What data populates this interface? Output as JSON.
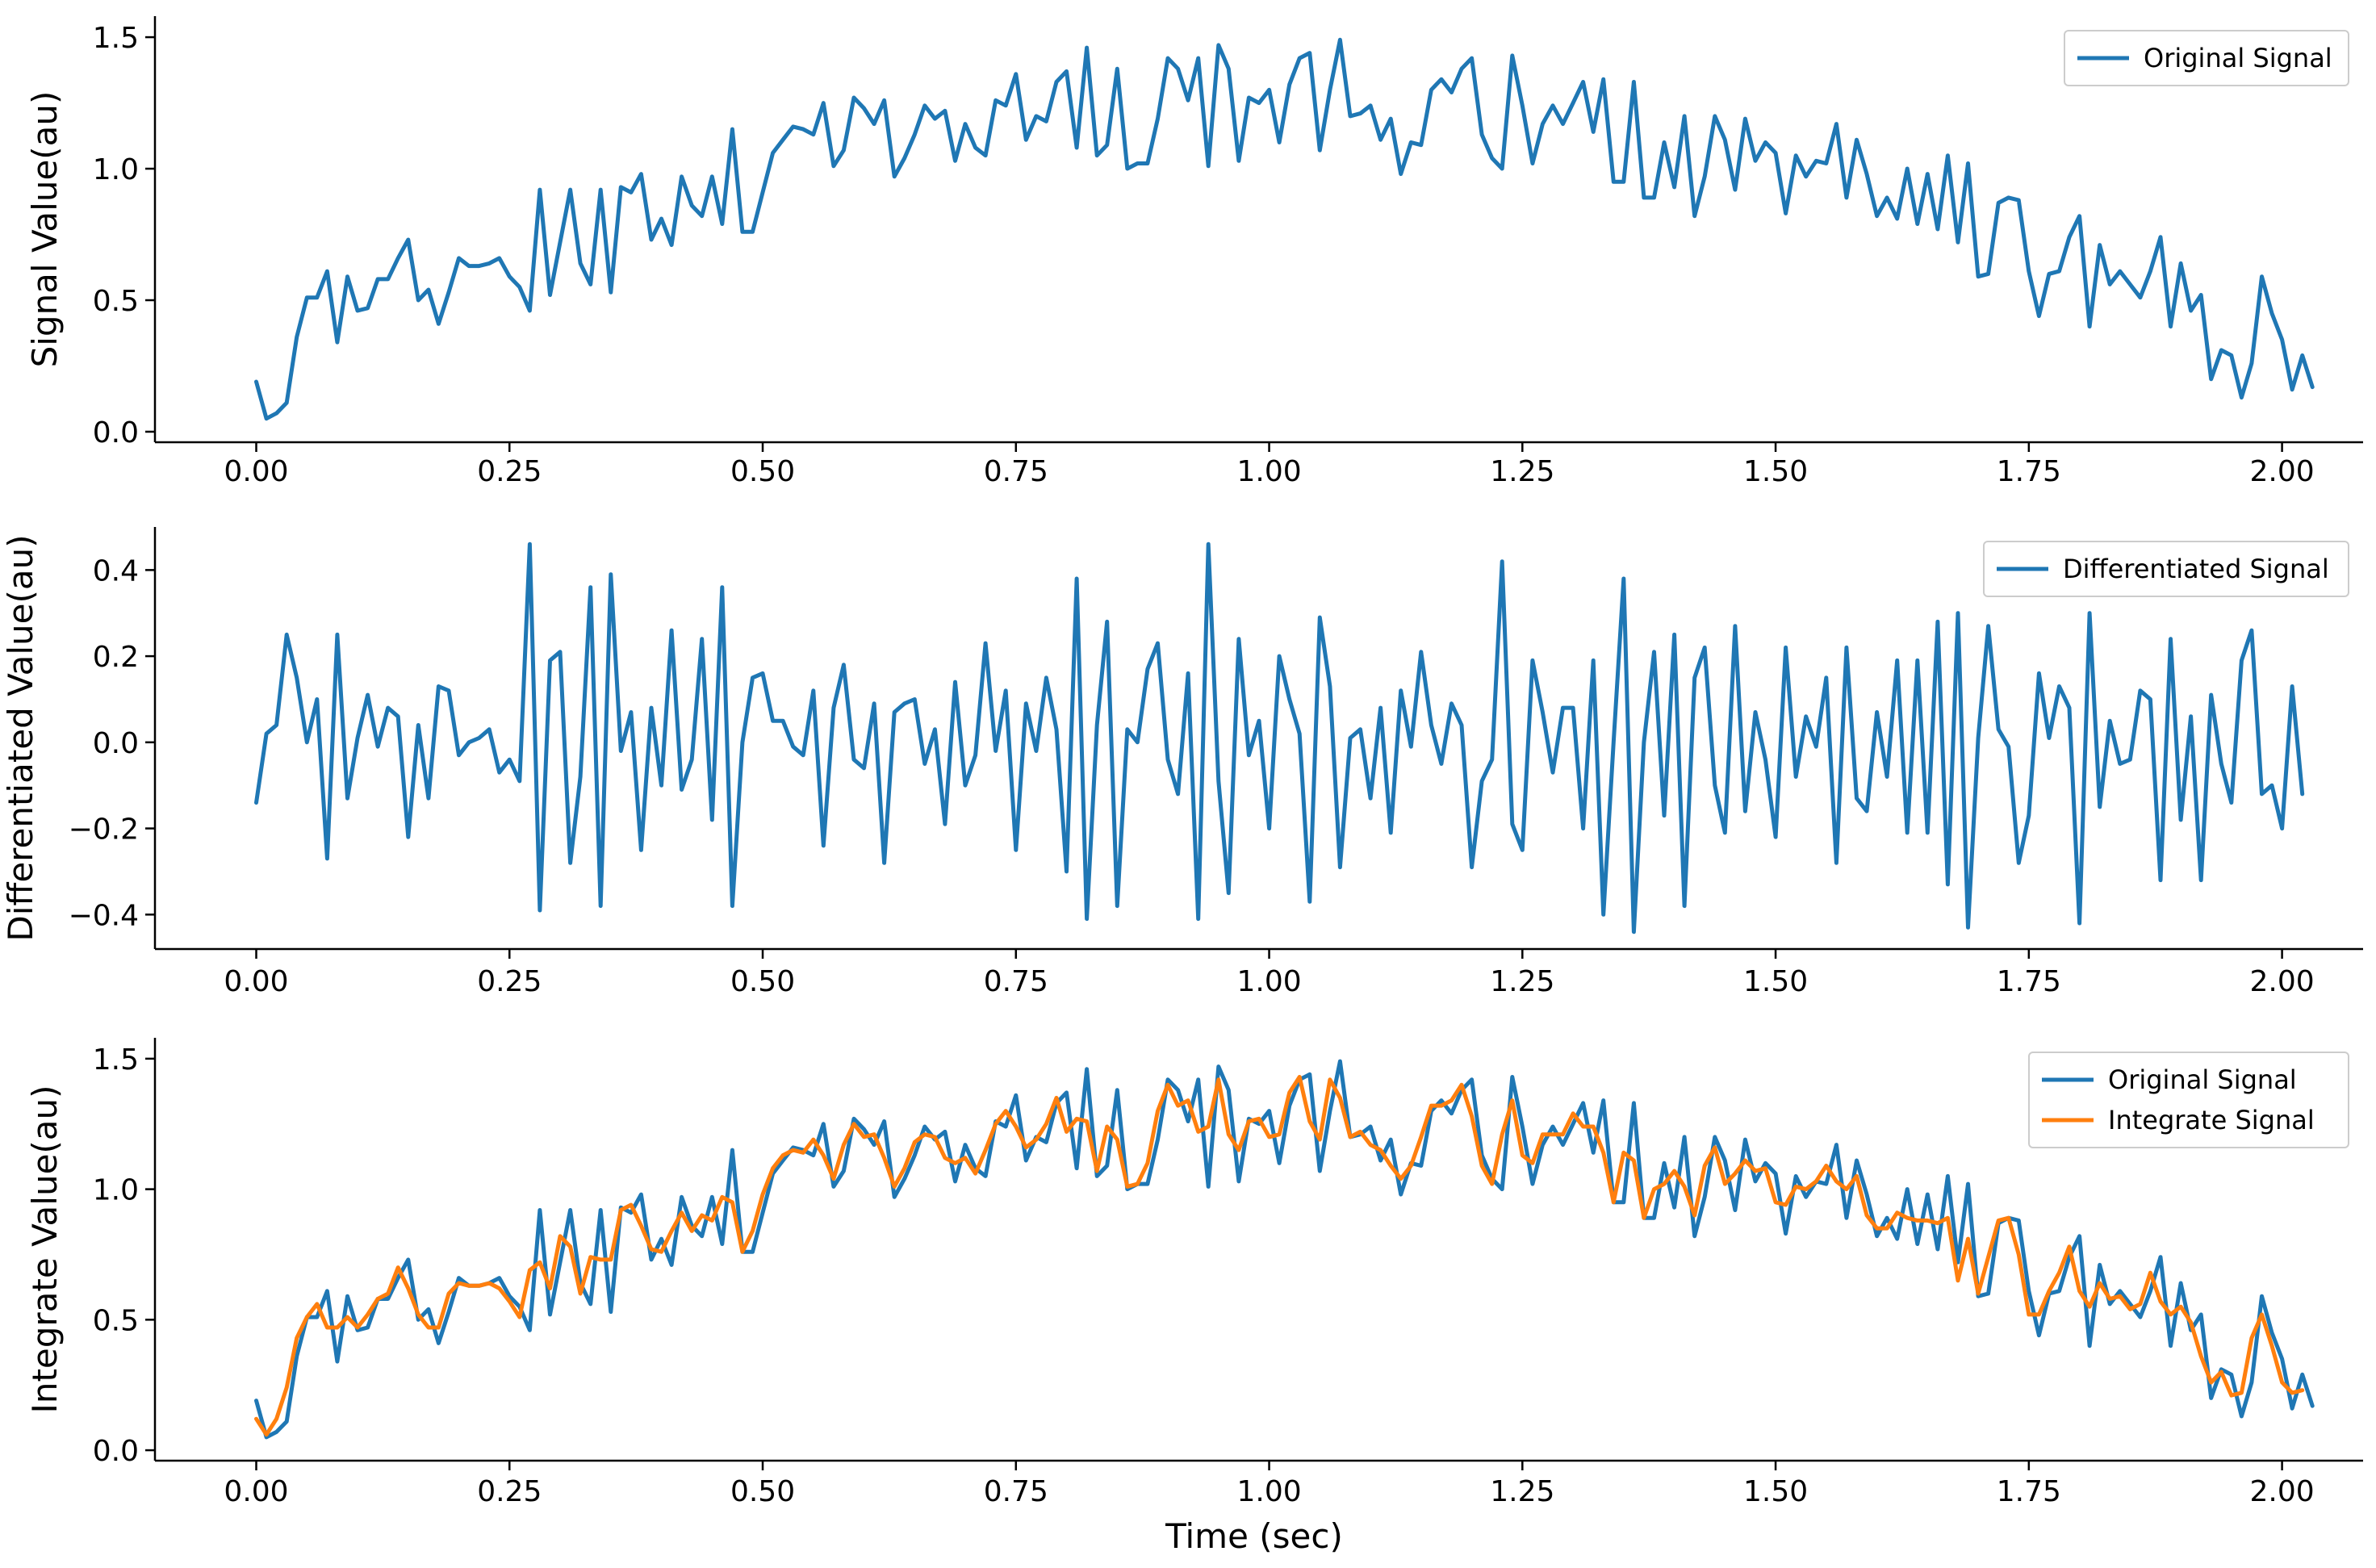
{
  "chart_data": [
    {
      "type": "line",
      "title": "",
      "xlabel": "",
      "ylabel": "Signal Value(au)",
      "xlim": [
        -0.1,
        2.08
      ],
      "ylim": [
        -0.04,
        1.58
      ],
      "xticks": [
        0.0,
        0.25,
        0.5,
        0.75,
        1.0,
        1.25,
        1.5,
        1.75,
        2.0
      ],
      "xtick_labels": [
        "0.00",
        "0.25",
        "0.50",
        "0.75",
        "1.00",
        "1.25",
        "1.50",
        "1.75",
        "2.00"
      ],
      "yticks": [
        0.0,
        0.5,
        1.0,
        1.5
      ],
      "ytick_labels": [
        "0.0",
        "0.5",
        "1.0",
        "1.5"
      ],
      "legend_position": "top-right",
      "series": [
        {
          "name": "Original Signal",
          "color": "#1f77b4",
          "x_start": 0.0,
          "x_step": 0.01,
          "values": [
            0.19,
            0.05,
            0.07,
            0.11,
            0.36,
            0.51,
            0.51,
            0.61,
            0.34,
            0.59,
            0.46,
            0.47,
            0.58,
            0.58,
            0.66,
            0.73,
            0.5,
            0.54,
            0.41,
            0.53,
            0.66,
            0.63,
            0.63,
            0.64,
            0.66,
            0.59,
            0.55,
            0.46,
            0.92,
            0.52,
            0.72,
            0.92,
            0.64,
            0.56,
            0.92,
            0.53,
            0.93,
            0.91,
            0.98,
            0.73,
            0.81,
            0.71,
            0.97,
            0.86,
            0.82,
            0.97,
            0.79,
            1.15,
            0.76,
            0.76,
            0.91,
            1.06,
            1.11,
            1.16,
            1.15,
            1.13,
            1.25,
            1.01,
            1.07,
            1.27,
            1.23,
            1.17,
            1.26,
            0.97,
            1.04,
            1.13,
            1.24,
            1.19,
            1.22,
            1.03,
            1.17,
            1.08,
            1.05,
            1.26,
            1.24,
            1.36,
            1.11,
            1.2,
            1.18,
            1.33,
            1.37,
            1.08,
            1.46,
            1.05,
            1.09,
            1.38,
            1.0,
            1.02,
            1.02,
            1.19,
            1.42,
            1.38,
            1.26,
            1.42,
            1.01,
            1.47,
            1.38,
            1.03,
            1.27,
            1.25,
            1.3,
            1.1,
            1.32,
            1.42,
            1.44,
            1.07,
            1.3,
            1.49,
            1.2,
            1.21,
            1.24,
            1.11,
            1.19,
            0.98,
            1.1,
            1.09,
            1.3,
            1.34,
            1.29,
            1.38,
            1.42,
            1.13,
            1.04,
            1.0,
            1.43,
            1.24,
            1.02,
            1.17,
            1.24,
            1.17,
            1.25,
            1.33,
            1.14,
            1.34,
            0.95,
            0.95,
            1.33,
            0.89,
            0.89,
            1.1,
            0.93,
            1.2,
            0.82,
            0.97,
            1.2,
            1.11,
            0.92,
            1.19,
            1.03,
            1.1,
            1.06,
            0.83,
            1.05,
            0.97,
            1.03,
            1.02,
            1.17,
            0.89,
            1.11,
            0.98,
            0.82,
            0.89,
            0.81,
            1.0,
            0.79,
            0.98,
            0.77,
            1.05,
            0.72,
            1.02,
            0.59,
            0.6,
            0.87,
            0.89,
            0.88,
            0.61,
            0.44,
            0.6,
            0.61,
            0.74,
            0.82,
            0.4,
            0.71,
            0.56,
            0.61,
            0.56,
            0.51,
            0.61,
            0.74,
            0.4,
            0.64,
            0.46,
            0.52,
            0.2,
            0.31,
            0.29,
            0.13,
            0.26,
            0.59,
            0.45,
            0.35,
            0.16,
            0.29,
            0.17
          ]
        }
      ]
    },
    {
      "type": "line",
      "title": "",
      "xlabel": "",
      "ylabel": "Differentiated Value(au)",
      "xlim": [
        -0.1,
        2.08
      ],
      "ylim": [
        -0.48,
        0.5
      ],
      "xticks": [
        0.0,
        0.25,
        0.5,
        0.75,
        1.0,
        1.25,
        1.5,
        1.75,
        2.0
      ],
      "xtick_labels": [
        "0.00",
        "0.25",
        "0.50",
        "0.75",
        "1.00",
        "1.25",
        "1.50",
        "1.75",
        "2.00"
      ],
      "yticks": [
        -0.4,
        -0.2,
        0.0,
        0.2,
        0.4
      ],
      "ytick_labels": [
        "−0.4",
        "−0.2",
        "0.0",
        "0.2",
        "0.4"
      ],
      "legend_position": "top-right",
      "series": [
        {
          "name": "Differentiated Signal",
          "color": "#1f77b4",
          "x_start": 0.0,
          "x_step": 0.01,
          "values": [
            -0.14,
            0.02,
            0.04,
            0.25,
            0.15,
            0.0,
            0.1,
            -0.27,
            0.25,
            -0.13,
            0.01,
            0.11,
            -0.01,
            0.08,
            0.06,
            -0.22,
            0.04,
            -0.13,
            0.13,
            0.12,
            -0.03,
            0.0,
            0.01,
            0.03,
            -0.07,
            -0.04,
            -0.09,
            0.46,
            -0.39,
            0.19,
            0.21,
            -0.28,
            -0.08,
            0.36,
            -0.38,
            0.39,
            -0.02,
            0.07,
            -0.25,
            0.08,
            -0.1,
            0.26,
            -0.11,
            -0.04,
            0.24,
            -0.18,
            0.36,
            -0.38,
            0.0,
            0.15,
            0.16,
            0.05,
            0.05,
            -0.01,
            -0.03,
            0.12,
            -0.24,
            0.08,
            0.18,
            -0.04,
            -0.06,
            0.09,
            -0.28,
            0.07,
            0.09,
            0.1,
            -0.05,
            0.03,
            -0.19,
            0.14,
            -0.1,
            -0.03,
            0.23,
            -0.02,
            0.12,
            -0.25,
            0.09,
            -0.02,
            0.15,
            0.03,
            -0.3,
            0.38,
            -0.41,
            0.04,
            0.28,
            -0.38,
            0.03,
            0.0,
            0.17,
            0.23,
            -0.04,
            -0.12,
            0.16,
            -0.41,
            0.46,
            -0.09,
            -0.35,
            0.24,
            -0.03,
            0.05,
            -0.2,
            0.2,
            0.1,
            0.02,
            -0.37,
            0.29,
            0.13,
            -0.29,
            0.01,
            0.03,
            -0.13,
            0.08,
            -0.21,
            0.12,
            -0.01,
            0.21,
            0.04,
            -0.05,
            0.09,
            0.04,
            -0.29,
            -0.09,
            -0.04,
            0.42,
            -0.19,
            -0.25,
            0.19,
            0.07,
            -0.07,
            0.08,
            0.08,
            -0.2,
            0.19,
            -0.4,
            0.0,
            0.38,
            -0.44,
            0.0,
            0.21,
            -0.17,
            0.25,
            -0.38,
            0.15,
            0.22,
            -0.1,
            -0.21,
            0.27,
            -0.16,
            0.07,
            -0.04,
            -0.22,
            0.22,
            -0.08,
            0.06,
            -0.01,
            0.15,
            -0.28,
            0.22,
            -0.13,
            -0.16,
            0.07,
            -0.08,
            0.19,
            -0.21,
            0.19,
            -0.21,
            0.28,
            -0.33,
            0.3,
            -0.43,
            0.01,
            0.27,
            0.03,
            -0.01,
            -0.28,
            -0.17,
            0.16,
            0.01,
            0.13,
            0.08,
            -0.42,
            0.3,
            -0.15,
            0.05,
            -0.05,
            -0.04,
            0.12,
            0.1,
            -0.32,
            0.24,
            -0.18,
            0.06,
            -0.32,
            0.11,
            -0.05,
            -0.14,
            0.19,
            0.26,
            -0.12,
            -0.1,
            -0.2,
            0.13,
            -0.12
          ]
        }
      ]
    },
    {
      "type": "line",
      "title": "",
      "xlabel": "Time (sec)",
      "ylabel": "Integrate Value(au)",
      "xlim": [
        -0.1,
        2.08
      ],
      "ylim": [
        -0.04,
        1.58
      ],
      "xticks": [
        0.0,
        0.25,
        0.5,
        0.75,
        1.0,
        1.25,
        1.5,
        1.75,
        2.0
      ],
      "xtick_labels": [
        "0.00",
        "0.25",
        "0.50",
        "0.75",
        "1.00",
        "1.25",
        "1.50",
        "1.75",
        "2.00"
      ],
      "yticks": [
        0.0,
        0.5,
        1.0,
        1.5
      ],
      "ytick_labels": [
        "0.0",
        "0.5",
        "1.0",
        "1.5"
      ],
      "legend_position": "top-right",
      "series": [
        {
          "name": "Original Signal",
          "color": "#1f77b4",
          "x_start": 0.0,
          "x_step": 0.01,
          "values": [
            0.19,
            0.05,
            0.07,
            0.11,
            0.36,
            0.51,
            0.51,
            0.61,
            0.34,
            0.59,
            0.46,
            0.47,
            0.58,
            0.58,
            0.66,
            0.73,
            0.5,
            0.54,
            0.41,
            0.53,
            0.66,
            0.63,
            0.63,
            0.64,
            0.66,
            0.59,
            0.55,
            0.46,
            0.92,
            0.52,
            0.72,
            0.92,
            0.64,
            0.56,
            0.92,
            0.53,
            0.93,
            0.91,
            0.98,
            0.73,
            0.81,
            0.71,
            0.97,
            0.86,
            0.82,
            0.97,
            0.79,
            1.15,
            0.76,
            0.76,
            0.91,
            1.06,
            1.11,
            1.16,
            1.15,
            1.13,
            1.25,
            1.01,
            1.07,
            1.27,
            1.23,
            1.17,
            1.26,
            0.97,
            1.04,
            1.13,
            1.24,
            1.19,
            1.22,
            1.03,
            1.17,
            1.08,
            1.05,
            1.26,
            1.24,
            1.36,
            1.11,
            1.2,
            1.18,
            1.33,
            1.37,
            1.08,
            1.46,
            1.05,
            1.09,
            1.38,
            1.0,
            1.02,
            1.02,
            1.19,
            1.42,
            1.38,
            1.26,
            1.42,
            1.01,
            1.47,
            1.38,
            1.03,
            1.27,
            1.25,
            1.3,
            1.1,
            1.32,
            1.42,
            1.44,
            1.07,
            1.3,
            1.49,
            1.2,
            1.21,
            1.24,
            1.11,
            1.19,
            0.98,
            1.1,
            1.09,
            1.3,
            1.34,
            1.29,
            1.38,
            1.42,
            1.13,
            1.04,
            1.0,
            1.43,
            1.24,
            1.02,
            1.17,
            1.24,
            1.17,
            1.25,
            1.33,
            1.14,
            1.34,
            0.95,
            0.95,
            1.33,
            0.89,
            0.89,
            1.1,
            0.93,
            1.2,
            0.82,
            0.97,
            1.2,
            1.11,
            0.92,
            1.19,
            1.03,
            1.1,
            1.06,
            0.83,
            1.05,
            0.97,
            1.03,
            1.02,
            1.17,
            0.89,
            1.11,
            0.98,
            0.82,
            0.89,
            0.81,
            1.0,
            0.79,
            0.98,
            0.77,
            1.05,
            0.72,
            1.02,
            0.59,
            0.6,
            0.87,
            0.89,
            0.88,
            0.61,
            0.44,
            0.6,
            0.61,
            0.74,
            0.82,
            0.4,
            0.71,
            0.56,
            0.61,
            0.56,
            0.51,
            0.61,
            0.74,
            0.4,
            0.64,
            0.46,
            0.52,
            0.2,
            0.31,
            0.29,
            0.13,
            0.26,
            0.59,
            0.45,
            0.35,
            0.16,
            0.29,
            0.17
          ]
        },
        {
          "name": "Integrate Signal",
          "color": "#ff7f0e",
          "x_start": 0.0,
          "x_step": 0.01,
          "values": [
            0.12,
            0.06,
            0.12,
            0.24,
            0.43,
            0.51,
            0.56,
            0.47,
            0.47,
            0.51,
            0.47,
            0.52,
            0.58,
            0.6,
            0.7,
            0.62,
            0.52,
            0.47,
            0.47,
            0.6,
            0.64,
            0.63,
            0.63,
            0.64,
            0.62,
            0.57,
            0.51,
            0.69,
            0.72,
            0.62,
            0.82,
            0.78,
            0.6,
            0.74,
            0.73,
            0.73,
            0.92,
            0.94,
            0.86,
            0.77,
            0.76,
            0.84,
            0.91,
            0.84,
            0.9,
            0.88,
            0.97,
            0.95,
            0.76,
            0.84,
            0.98,
            1.08,
            1.13,
            1.15,
            1.14,
            1.19,
            1.13,
            1.04,
            1.17,
            1.25,
            1.2,
            1.21,
            1.12,
            1.01,
            1.08,
            1.18,
            1.21,
            1.2,
            1.12,
            1.1,
            1.12,
            1.06,
            1.15,
            1.25,
            1.3,
            1.24,
            1.16,
            1.19,
            1.25,
            1.35,
            1.22,
            1.27,
            1.26,
            1.07,
            1.24,
            1.19,
            1.01,
            1.02,
            1.1,
            1.3,
            1.4,
            1.32,
            1.34,
            1.22,
            1.24,
            1.42,
            1.21,
            1.15,
            1.26,
            1.27,
            1.2,
            1.21,
            1.37,
            1.43,
            1.26,
            1.19,
            1.42,
            1.35,
            1.2,
            1.22,
            1.17,
            1.15,
            1.09,
            1.04,
            1.09,
            1.2,
            1.32,
            1.32,
            1.34,
            1.4,
            1.28,
            1.09,
            1.02,
            1.21,
            1.34,
            1.13,
            1.1,
            1.21,
            1.21,
            1.21,
            1.29,
            1.24,
            1.24,
            1.14,
            0.95,
            1.14,
            1.11,
            0.89,
            1.0,
            1.02,
            1.07,
            1.01,
            0.9,
            1.09,
            1.16,
            1.02,
            1.06,
            1.11,
            1.07,
            1.08,
            0.95,
            0.94,
            1.01,
            1.0,
            1.03,
            1.09,
            1.03,
            1.0,
            1.05,
            0.9,
            0.85,
            0.85,
            0.91,
            0.89,
            0.88,
            0.88,
            0.87,
            0.89,
            0.65,
            0.81,
            0.6,
            0.74,
            0.88,
            0.89,
            0.75,
            0.52,
            0.52,
            0.61,
            0.68,
            0.78,
            0.61,
            0.55,
            0.64,
            0.58,
            0.59,
            0.54,
            0.56,
            0.68,
            0.57,
            0.52,
            0.55,
            0.49,
            0.36,
            0.26,
            0.3,
            0.21,
            0.22,
            0.43,
            0.52,
            0.4,
            0.26,
            0.22,
            0.23
          ]
        }
      ]
    }
  ]
}
